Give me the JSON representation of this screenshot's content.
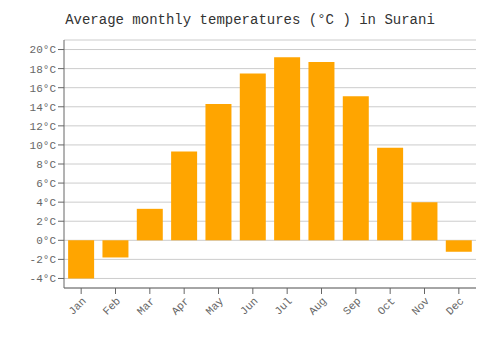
{
  "chart_data": {
    "type": "bar",
    "title": "Average monthly temperatures (°C ) in Surani",
    "categories": [
      "Jan",
      "Feb",
      "Mar",
      "Apr",
      "May",
      "Jun",
      "Jul",
      "Aug",
      "Sep",
      "Oct",
      "Nov",
      "Dec"
    ],
    "values": [
      -4.0,
      -1.8,
      3.3,
      9.3,
      14.3,
      17.5,
      19.2,
      18.7,
      15.1,
      9.7,
      4.0,
      -1.2
    ],
    "color": "#FFA500",
    "ylim": [
      -5,
      21
    ],
    "yticks": [
      {
        "value": -4,
        "label": "-4°C"
      },
      {
        "value": -2,
        "label": "-2°C"
      },
      {
        "value": 0,
        "label": "0°C"
      },
      {
        "value": 2,
        "label": "2°C"
      },
      {
        "value": 4,
        "label": "4°C"
      },
      {
        "value": 6,
        "label": "6°C"
      },
      {
        "value": 8,
        "label": "8°C"
      },
      {
        "value": 10,
        "label": "10°C"
      },
      {
        "value": 12,
        "label": "12°C"
      },
      {
        "value": 14,
        "label": "14°C"
      },
      {
        "value": 16,
        "label": "16°C"
      },
      {
        "value": 18,
        "label": "18°C"
      },
      {
        "value": 20,
        "label": "20°C"
      }
    ],
    "grid": true
  }
}
